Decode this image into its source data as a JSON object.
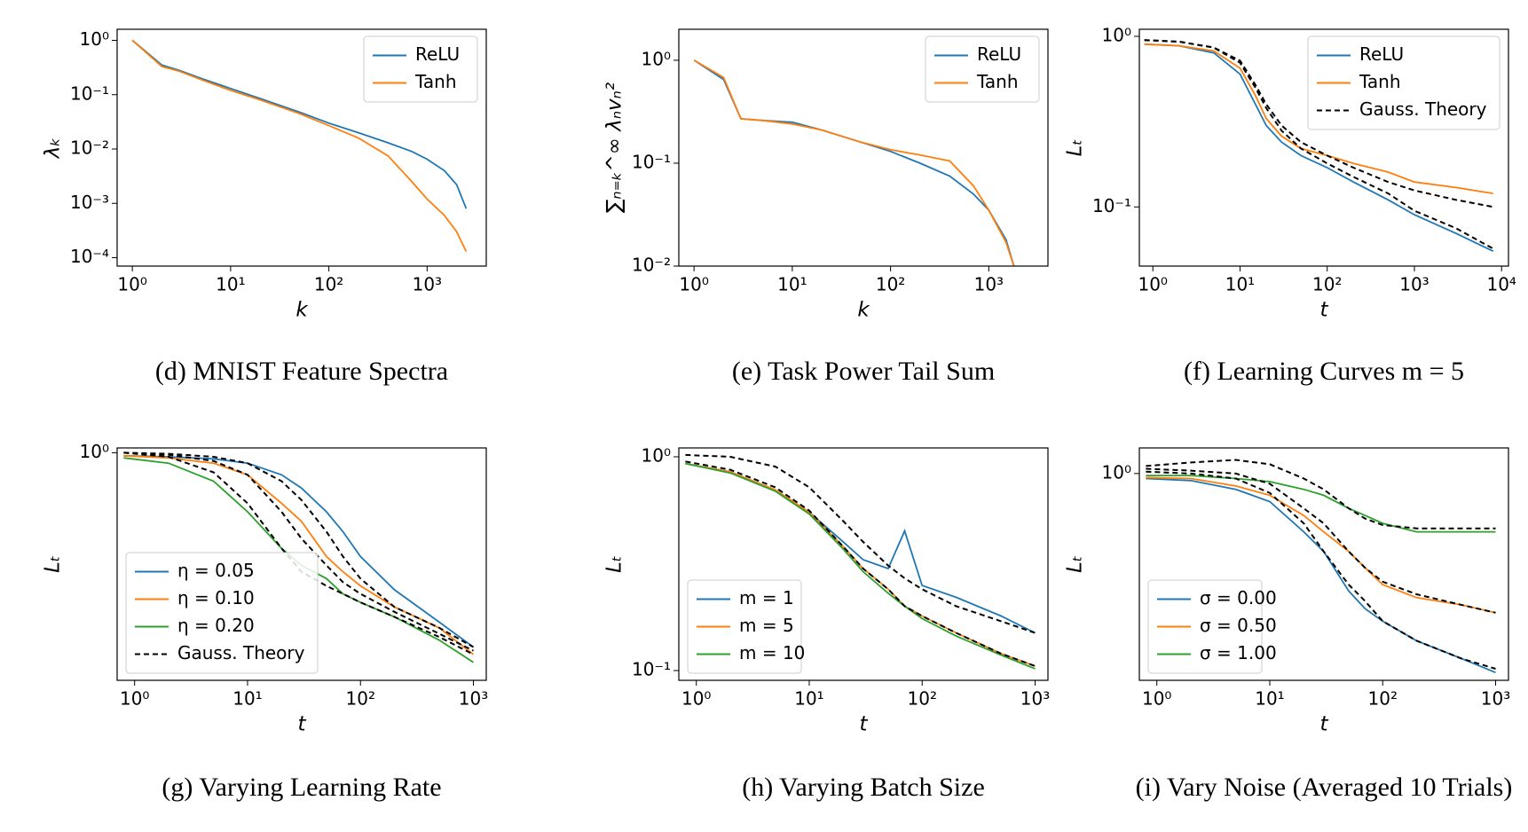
{
  "chart_data": [
    {
      "type": "line",
      "caption": "(d) MNIST Feature Spectra",
      "xlabel": "k",
      "ylabel": "λₖ",
      "xlog": true,
      "ylog": true,
      "legend": "upper right",
      "xlim": [
        0.7,
        4000
      ],
      "ylim": [
        7e-05,
        1.6
      ],
      "xticks": [
        {
          "value": 1,
          "label": "10⁰"
        },
        {
          "value": 10,
          "label": "10¹"
        },
        {
          "value": 100,
          "label": "10²"
        },
        {
          "value": 1000,
          "label": "10³"
        }
      ],
      "yticks": [
        {
          "value": 0.0001,
          "label": "10⁻⁴"
        },
        {
          "value": 0.001,
          "label": "10⁻³"
        },
        {
          "value": 0.01,
          "label": "10⁻²"
        },
        {
          "value": 0.1,
          "label": "10⁻¹"
        },
        {
          "value": 1,
          "label": "10⁰"
        }
      ],
      "x": [
        1,
        2,
        3,
        5,
        10,
        20,
        50,
        100,
        200,
        400,
        700,
        1000,
        1500,
        2000,
        2500
      ],
      "series": [
        {
          "name": "ReLU",
          "color": "#1f77b4",
          "values": [
            1,
            0.35,
            0.28,
            0.2,
            0.13,
            0.085,
            0.048,
            0.03,
            0.02,
            0.013,
            0.009,
            0.0065,
            0.004,
            0.0022,
            0.0008
          ]
        },
        {
          "name": "Tanh",
          "color": "#ff7f0e",
          "values": [
            1,
            0.33,
            0.27,
            0.19,
            0.12,
            0.08,
            0.045,
            0.027,
            0.016,
            0.0075,
            0.0025,
            0.0012,
            0.0006,
            0.0003,
            0.00013
          ]
        }
      ]
    },
    {
      "type": "line",
      "caption": "(e) Task Power Tail Sum",
      "xlabel": "k",
      "ylabel": "∑ₙ₌ₖ^∞ λₙvₙ²",
      "xlog": true,
      "ylog": true,
      "legend": "upper right",
      "xlim": [
        0.7,
        4000
      ],
      "ylim": [
        0.01,
        2
      ],
      "xticks": [
        {
          "value": 1,
          "label": "10⁰"
        },
        {
          "value": 10,
          "label": "10¹"
        },
        {
          "value": 100,
          "label": "10²"
        },
        {
          "value": 1000,
          "label": "10³"
        }
      ],
      "yticks": [
        {
          "value": 0.01,
          "label": "10⁻²"
        },
        {
          "value": 0.1,
          "label": "10⁻¹"
        },
        {
          "value": 1,
          "label": "10⁰"
        }
      ],
      "x": [
        1,
        2,
        3,
        5,
        10,
        20,
        50,
        100,
        200,
        400,
        700,
        1000,
        1500,
        1800
      ],
      "series": [
        {
          "name": "ReLU",
          "color": "#1f77b4",
          "values": [
            1,
            0.65,
            0.27,
            0.26,
            0.25,
            0.21,
            0.16,
            0.13,
            0.1,
            0.075,
            0.05,
            0.035,
            0.018,
            0.01
          ]
        },
        {
          "name": "Tanh",
          "color": "#ff7f0e",
          "values": [
            1,
            0.68,
            0.27,
            0.26,
            0.24,
            0.21,
            0.16,
            0.135,
            0.12,
            0.105,
            0.06,
            0.035,
            0.017,
            0.01
          ]
        }
      ]
    },
    {
      "type": "line",
      "caption": "(f) Learning Curves m = 5",
      "xlabel": "t",
      "ylabel": "Lₜ",
      "xlog": true,
      "ylog": true,
      "legend": "upper right",
      "xlim": [
        0.7,
        12000
      ],
      "ylim": [
        0.045,
        1.1
      ],
      "xticks": [
        {
          "value": 1,
          "label": "10⁰"
        },
        {
          "value": 10,
          "label": "10¹"
        },
        {
          "value": 100,
          "label": "10²"
        },
        {
          "value": 1000,
          "label": "10³"
        },
        {
          "value": 10000,
          "label": "10⁴"
        }
      ],
      "yticks": [
        {
          "value": 0.1,
          "label": "10⁻¹"
        },
        {
          "value": 1,
          "label": "10⁰"
        }
      ],
      "x": [
        0.8,
        2,
        5,
        10,
        15,
        20,
        30,
        50,
        100,
        200,
        500,
        1000,
        3000,
        8000
      ],
      "series": [
        {
          "name": "ReLU",
          "color": "#1f77b4",
          "values": [
            0.9,
            0.88,
            0.8,
            0.6,
            0.4,
            0.3,
            0.24,
            0.2,
            0.17,
            0.14,
            0.11,
            0.09,
            0.07,
            0.055
          ]
        },
        {
          "name": "Tanh",
          "color": "#ff7f0e",
          "values": [
            0.9,
            0.88,
            0.82,
            0.65,
            0.45,
            0.33,
            0.26,
            0.22,
            0.2,
            0.18,
            0.16,
            0.14,
            0.13,
            0.12
          ]
        },
        {
          "name": "Gauss. Theory",
          "color": "#000000",
          "dashed": true,
          "values": [
            0.95,
            0.93,
            0.86,
            0.7,
            0.5,
            0.38,
            0.28,
            0.22,
            0.18,
            0.15,
            0.12,
            0.095,
            0.075,
            0.057
          ]
        },
        {
          "color": "#000000",
          "dashed": true,
          "values": [
            0.95,
            0.93,
            0.86,
            0.72,
            0.52,
            0.4,
            0.3,
            0.24,
            0.2,
            0.17,
            0.14,
            0.125,
            0.11,
            0.1
          ]
        }
      ]
    },
    {
      "type": "line",
      "caption": "(g) Varying Learning Rate",
      "xlabel": "t",
      "ylabel": "Lₜ",
      "xlog": true,
      "ylog": true,
      "legend": "lower left",
      "xlim": [
        0.7,
        1300
      ],
      "ylim": [
        0.1,
        1.05
      ],
      "xticks": [
        {
          "value": 1,
          "label": "10⁰"
        },
        {
          "value": 10,
          "label": "10¹"
        },
        {
          "value": 100,
          "label": "10²"
        },
        {
          "value": 1000,
          "label": "10³"
        }
      ],
      "yticks": [
        {
          "value": 1,
          "label": "10⁰"
        }
      ],
      "x": [
        0.8,
        2,
        5,
        10,
        20,
        30,
        50,
        70,
        100,
        200,
        500,
        1000
      ],
      "series": [
        {
          "name": "η = 0.05",
          "color": "#1f77b4",
          "values": [
            0.97,
            0.96,
            0.94,
            0.9,
            0.8,
            0.7,
            0.55,
            0.45,
            0.35,
            0.25,
            0.18,
            0.14
          ]
        },
        {
          "name": "η = 0.10",
          "color": "#ff7f0e",
          "values": [
            0.97,
            0.95,
            0.9,
            0.8,
            0.6,
            0.5,
            0.35,
            0.3,
            0.26,
            0.21,
            0.17,
            0.13
          ]
        },
        {
          "name": "η = 0.20",
          "color": "#2ca02c",
          "values": [
            0.95,
            0.9,
            0.75,
            0.55,
            0.38,
            0.32,
            0.28,
            0.24,
            0.22,
            0.19,
            0.15,
            0.12
          ]
        },
        {
          "name": "Gauss. Theory",
          "color": "#000000",
          "dashed": true,
          "values": [
            1,
            0.99,
            0.96,
            0.9,
            0.75,
            0.62,
            0.45,
            0.35,
            0.28,
            0.21,
            0.17,
            0.14
          ]
        },
        {
          "color": "#000000",
          "dashed": true,
          "values": [
            1,
            0.98,
            0.92,
            0.8,
            0.55,
            0.42,
            0.32,
            0.27,
            0.24,
            0.2,
            0.16,
            0.135
          ]
        },
        {
          "color": "#000000",
          "dashed": true,
          "values": [
            1,
            0.96,
            0.82,
            0.6,
            0.38,
            0.3,
            0.26,
            0.24,
            0.22,
            0.19,
            0.155,
            0.13
          ]
        }
      ]
    },
    {
      "type": "line",
      "caption": "(h) Varying Batch Size",
      "xlabel": "t",
      "ylabel": "Lₜ",
      "xlog": true,
      "ylog": true,
      "legend": "lower left",
      "xlim": [
        0.7,
        1300
      ],
      "ylim": [
        0.09,
        1.1
      ],
      "xticks": [
        {
          "value": 1,
          "label": "10⁰"
        },
        {
          "value": 10,
          "label": "10¹"
        },
        {
          "value": 100,
          "label": "10²"
        },
        {
          "value": 1000,
          "label": "10³"
        }
      ],
      "yticks": [
        {
          "value": 0.1,
          "label": "10⁻¹"
        },
        {
          "value": 1,
          "label": "10⁰"
        }
      ],
      "x": [
        0.8,
        2,
        5,
        10,
        20,
        30,
        50,
        70,
        100,
        200,
        500,
        1000
      ],
      "series": [
        {
          "name": "m = 1",
          "color": "#1f77b4",
          "values": [
            0.93,
            0.85,
            0.7,
            0.55,
            0.4,
            0.33,
            0.3,
            0.45,
            0.25,
            0.22,
            0.18,
            0.15
          ]
        },
        {
          "name": "m = 5",
          "color": "#ff7f0e",
          "values": [
            0.93,
            0.85,
            0.7,
            0.55,
            0.38,
            0.3,
            0.24,
            0.2,
            0.18,
            0.15,
            0.12,
            0.105
          ]
        },
        {
          "name": "m = 10",
          "color": "#2ca02c",
          "values": [
            0.93,
            0.84,
            0.69,
            0.54,
            0.37,
            0.29,
            0.23,
            0.2,
            0.175,
            0.145,
            0.118,
            0.102
          ]
        },
        {
          "color": "#000000",
          "dashed": true,
          "values": [
            1.02,
            1,
            0.9,
            0.72,
            0.5,
            0.4,
            0.31,
            0.27,
            0.24,
            0.2,
            0.17,
            0.15
          ]
        },
        {
          "color": "#000000",
          "dashed": true,
          "values": [
            0.95,
            0.87,
            0.72,
            0.56,
            0.38,
            0.3,
            0.24,
            0.2,
            0.18,
            0.15,
            0.12,
            0.105
          ]
        }
      ]
    },
    {
      "type": "line",
      "caption": "(i) Vary Noise (Averaged 10 Trials)",
      "xlabel": "t",
      "ylabel": "Lₜ",
      "xlog": true,
      "ylog": true,
      "legend": "lower left",
      "xlim": [
        0.7,
        1300
      ],
      "ylim": [
        0.12,
        1.3
      ],
      "xticks": [
        {
          "value": 1,
          "label": "10⁰"
        },
        {
          "value": 10,
          "label": "10¹"
        },
        {
          "value": 100,
          "label": "10²"
        },
        {
          "value": 1000,
          "label": "10³"
        }
      ],
      "yticks": [
        {
          "value": 1,
          "label": "10⁰"
        }
      ],
      "x": [
        0.8,
        2,
        5,
        10,
        20,
        30,
        50,
        70,
        100,
        200,
        500,
        1000
      ],
      "series": [
        {
          "name": "σ = 0.00",
          "color": "#1f77b4",
          "values": [
            0.95,
            0.93,
            0.85,
            0.75,
            0.55,
            0.45,
            0.3,
            0.25,
            0.22,
            0.18,
            0.15,
            0.13
          ]
        },
        {
          "name": "σ = 0.50",
          "color": "#ff7f0e",
          "values": [
            0.96,
            0.95,
            0.88,
            0.8,
            0.65,
            0.55,
            0.45,
            0.38,
            0.32,
            0.28,
            0.26,
            0.24
          ]
        },
        {
          "name": "σ = 1.00",
          "color": "#2ca02c",
          "values": [
            0.98,
            0.98,
            0.95,
            0.92,
            0.85,
            0.8,
            0.7,
            0.65,
            0.6,
            0.55,
            0.55,
            0.55
          ]
        },
        {
          "color": "#000000",
          "dashed": true,
          "values": [
            1.02,
            1,
            0.95,
            0.82,
            0.6,
            0.45,
            0.32,
            0.27,
            0.22,
            0.18,
            0.15,
            0.135
          ]
        },
        {
          "color": "#000000",
          "dashed": true,
          "values": [
            1.05,
            1.03,
            1,
            0.9,
            0.7,
            0.6,
            0.45,
            0.38,
            0.33,
            0.29,
            0.26,
            0.24
          ]
        },
        {
          "color": "#000000",
          "dashed": true,
          "values": [
            1.08,
            1.12,
            1.15,
            1.1,
            0.95,
            0.85,
            0.7,
            0.63,
            0.59,
            0.57,
            0.57,
            0.57
          ]
        }
      ]
    }
  ]
}
